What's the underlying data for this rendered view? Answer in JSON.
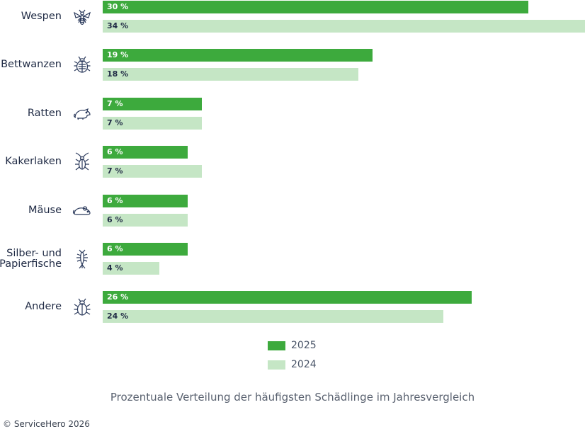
{
  "chart_data": {
    "type": "bar",
    "orientation": "horizontal",
    "categories": [
      "Wespen",
      "Bettwanzen",
      "Ratten",
      "Kakerlaken",
      "Mäuse",
      "Silber- und\nPapierfische",
      "Andere"
    ],
    "category_icons": [
      "wasp-icon",
      "bedbug-icon",
      "rat-icon",
      "cockroach-icon",
      "mouse-icon",
      "silverfish-icon",
      "beetle-icon"
    ],
    "series": [
      {
        "name": "2025",
        "color": "#3daa3d",
        "values": [
          30,
          19,
          7,
          6,
          6,
          6,
          26
        ],
        "labels": [
          "30 %",
          "19 %",
          "7 %",
          "6 %",
          "6 %",
          "6 %",
          "26 %"
        ]
      },
      {
        "name": "2024",
        "color": "#c5e6c5",
        "values": [
          34,
          18,
          7,
          7,
          6,
          4,
          24
        ],
        "labels": [
          "34 %",
          "18 %",
          "7 %",
          "7 %",
          "6 %",
          "4 %",
          "24 %"
        ]
      }
    ],
    "xlim": [
      0,
      34
    ],
    "grid": false,
    "legend_position": "bottom-center"
  },
  "caption": "Prozentuale Verteilung der häufigsten Schädlinge im Jahresvergleich",
  "copyright": "© ServiceHero 2026"
}
